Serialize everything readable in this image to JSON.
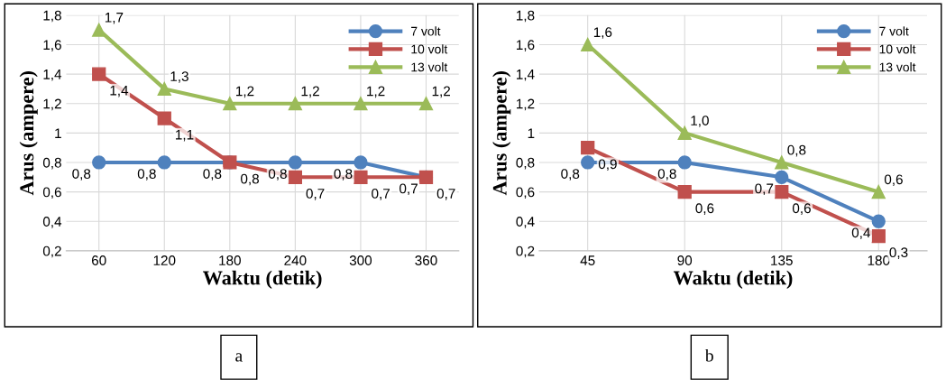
{
  "chart_data": [
    {
      "type": "line",
      "categories": [
        "60",
        "120",
        "180",
        "240",
        "300",
        "360"
      ],
      "xlabel": "Waktu (detik)",
      "ylabel": "Arus (ampere)",
      "ylim": [
        0.2,
        1.8
      ],
      "yticks": [
        {
          "value": 0.2,
          "label": "0,2"
        },
        {
          "value": 0.4,
          "label": "0,4"
        },
        {
          "value": 0.6,
          "label": "0,6"
        },
        {
          "value": 0.8,
          "label": "0,8"
        },
        {
          "value": 1,
          "label": "1"
        },
        {
          "value": 1.2,
          "label": "1,2"
        },
        {
          "value": 1.4,
          "label": "1,4"
        },
        {
          "value": 1.6,
          "label": "1,6"
        },
        {
          "value": 1.8,
          "label": "1,8"
        }
      ],
      "grid": true,
      "legend": "top right",
      "annotations": [
        "a"
      ],
      "series": [
        {
          "name": "7 volt",
          "color": "#4f81bd",
          "marker": "circle",
          "values": [
            0.8,
            0.8,
            0.8,
            0.8,
            0.8,
            0.7
          ],
          "value_labels": [
            "0,8",
            "0,8",
            "0,8",
            "0,8",
            "0,8",
            "0,7"
          ]
        },
        {
          "name": "10 volt",
          "color": "#c0504d",
          "marker": "square",
          "values": [
            1.4,
            1.1,
            0.8,
            0.7,
            0.7,
            0.7
          ],
          "value_labels": [
            "1,4",
            "1,1",
            "0,8",
            "0,7",
            "0,7",
            "0,7"
          ]
        },
        {
          "name": "13 volt",
          "color": "#9bbb59",
          "marker": "triangle",
          "values": [
            1.7,
            1.3,
            1.2,
            1.2,
            1.2,
            1.2
          ],
          "value_labels": [
            "1,7",
            "1,3",
            "1,2",
            "1,2",
            "1,2",
            "1,2"
          ]
        }
      ]
    },
    {
      "type": "line",
      "categories": [
        "45",
        "90",
        "135",
        "180"
      ],
      "xlabel": "Waktu (detik)",
      "ylabel": "Arus (ampere)",
      "ylim": [
        0.2,
        1.8
      ],
      "yticks": [
        {
          "value": 0.2,
          "label": "0,2"
        },
        {
          "value": 0.4,
          "label": "0,4"
        },
        {
          "value": 0.6,
          "label": "0,6"
        },
        {
          "value": 0.8,
          "label": "0,8"
        },
        {
          "value": 1,
          "label": "1"
        },
        {
          "value": 1.2,
          "label": "1,2"
        },
        {
          "value": 1.4,
          "label": "1,4"
        },
        {
          "value": 1.6,
          "label": "1,6"
        },
        {
          "value": 1.8,
          "label": "1,8"
        }
      ],
      "grid": true,
      "legend": "top right",
      "annotations": [
        "b"
      ],
      "series": [
        {
          "name": "7 volt",
          "color": "#4f81bd",
          "marker": "circle",
          "values": [
            0.8,
            0.8,
            0.7,
            0.4
          ],
          "value_labels": [
            "0,8",
            "0,8",
            "0,7",
            "0,4"
          ]
        },
        {
          "name": "10 volt",
          "color": "#c0504d",
          "marker": "square",
          "values": [
            0.9,
            0.6,
            0.6,
            0.3
          ],
          "value_labels": [
            "0,9",
            "0,6",
            "0,6",
            "0,3"
          ]
        },
        {
          "name": "13 volt",
          "color": "#9bbb59",
          "marker": "triangle",
          "values": [
            1.6,
            1.0,
            0.8,
            0.6
          ],
          "value_labels": [
            "1,6",
            "1,0",
            "0,8",
            "0,6"
          ]
        }
      ]
    }
  ]
}
